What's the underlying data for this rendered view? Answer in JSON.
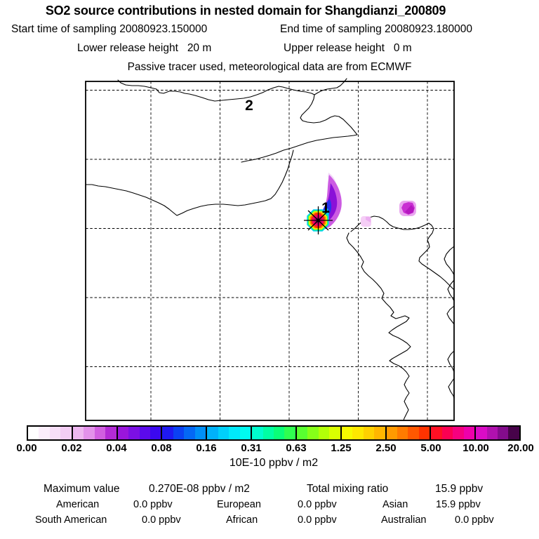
{
  "title": "SO2 source contributions in nested domain for Shangdianzi_200809",
  "header": {
    "start_time": "Start time of sampling 20080923.150000",
    "end_time": "End time of sampling 20080923.180000",
    "lower_release": "Lower release height   20 m",
    "upper_release": "Upper release height   0 m",
    "tracer_note": "Passive tracer used, meteorological data are from ECMWF"
  },
  "map": {
    "labels": [
      {
        "text": "1"
      },
      {
        "text": "2"
      }
    ]
  },
  "colorbar": {
    "tick_labels": [
      "0.00",
      "0.02",
      "0.04",
      "0.08",
      "0.16",
      "0.31",
      "0.63",
      "1.25",
      "2.50",
      "5.00",
      "10.00",
      "20.00"
    ],
    "unit_label": "10E-10 ppbv / m2",
    "segments": [
      [
        "#FFFFFF",
        "#FBEEFB",
        "#F7DEF8",
        "#F3CDF4"
      ],
      [
        "#EEB7F0",
        "#E392EA",
        "#D15FE0",
        "#B32BD5"
      ],
      [
        "#9A16DC",
        "#7C10E4",
        "#5B0AEC",
        "#3B08F0"
      ],
      [
        "#1F19F1",
        "#0B41F3",
        "#0468F5",
        "#008FF7"
      ],
      [
        "#00B2F9",
        "#00D0FA",
        "#00E9FB",
        "#00FAF0"
      ],
      [
        "#00FCCE",
        "#00FEA3",
        "#0AFE78",
        "#2FFF50"
      ],
      [
        "#58FF30",
        "#86FF18",
        "#B2FF08",
        "#DAFF01"
      ],
      [
        "#F6FB00",
        "#FEE800",
        "#FFD000",
        "#FFB600"
      ],
      [
        "#FF9A00",
        "#FF7B00",
        "#FF5800",
        "#FF3300"
      ],
      [
        "#FF1024",
        "#FB0052",
        "#F5007F",
        "#EE00AB"
      ],
      [
        "#DA0CC6",
        "#B011AE",
        "#830C8C",
        "#47034A"
      ]
    ]
  },
  "stats": {
    "max_label": "Maximum value",
    "max_value": "0.270E-08 ppbv / m2",
    "ratio_label": "Total mixing ratio",
    "ratio_value": "15.9 ppbv",
    "regions": [
      {
        "name": "American",
        "value": "0.0 ppbv"
      },
      {
        "name": "European",
        "value": "0.0 ppbv"
      },
      {
        "name": "Asian",
        "value": "15.9 ppbv"
      },
      {
        "name": "South American",
        "value": "0.0 ppbv"
      },
      {
        "name": "African",
        "value": "0.0 ppbv"
      },
      {
        "name": "Australian",
        "value": "0.0 ppbv"
      }
    ]
  },
  "chart_data": {
    "type": "heatmap",
    "title": "SO2 source contributions in nested domain for Shangdianzi_200809",
    "subtitle_lines": [
      "Start time of sampling 20080923.150000   End time of sampling 20080923.180000",
      "Lower release height 20 m    Upper release height 0 m",
      "Passive tracer used, meteorological data are from ECMWF"
    ],
    "colorbar_levels": [
      0.0,
      0.02,
      0.04,
      0.08,
      0.16,
      0.31,
      0.63,
      1.25,
      2.5,
      5.0,
      10.0,
      20.0
    ],
    "colorbar_unit": "10E-10 ppbv / m2",
    "maximum_value": "0.270E-08 ppbv / m2",
    "total_mixing_ratio": "15.9 ppbv",
    "region_contributions_ppbv": {
      "American": 0.0,
      "European": 0.0,
      "Asian": 15.9,
      "South American": 0.0,
      "African": 0.0,
      "Australian": 0.0
    },
    "map_labels": [
      "1",
      "2"
    ],
    "plume_description": "Single compact plume at star marker (label 1) extending NNE from violet edge through blue/cyan/green/yellow/orange to red-magenta core; two small faint violet patches east of plume; dashed lat-lon grid over coastlines of the Bohai Sea region."
  }
}
